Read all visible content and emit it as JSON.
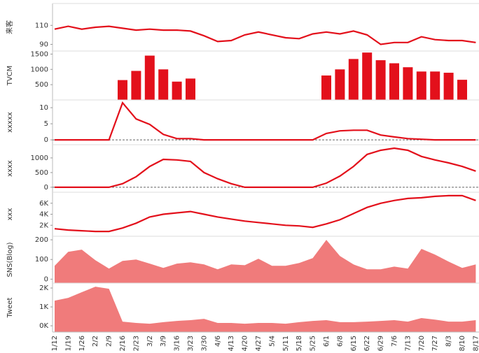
{
  "chart_data": [
    {
      "type": "line",
      "ylabel": "来客",
      "color": "#e3101b",
      "ylim": [
        83,
        133
      ],
      "yticks": [
        90,
        110
      ],
      "values": [
        106,
        109,
        106,
        108,
        109,
        107,
        105,
        106,
        105,
        105,
        104,
        99,
        93,
        94,
        100,
        103,
        100,
        97,
        96,
        101,
        103,
        101,
        104,
        100,
        90,
        92,
        92,
        98,
        95,
        94,
        94,
        92
      ]
    },
    {
      "type": "bar",
      "ylabel": "TVCM",
      "color": "#e3101b",
      "ylim": [
        0,
        1600
      ],
      "yticks": [
        500,
        1000,
        1500
      ],
      "values": [
        null,
        null,
        null,
        null,
        null,
        650,
        950,
        1450,
        1000,
        600,
        700,
        null,
        null,
        null,
        null,
        null,
        null,
        null,
        null,
        null,
        800,
        1000,
        1340,
        1550,
        1300,
        1200,
        1070,
        930,
        930,
        890,
        660,
        null
      ]
    },
    {
      "type": "line",
      "ylabel": "xxxxx",
      "color": "#e3101b",
      "zero_line": true,
      "ylim": [
        -1.5,
        12.4
      ],
      "yticks": [
        0,
        5,
        10
      ],
      "values": [
        0,
        0,
        0,
        0,
        0,
        11.5,
        6.5,
        4.8,
        1.7,
        0.4,
        0.4,
        0,
        0,
        0,
        0,
        0,
        0,
        0,
        0,
        0,
        2,
        2.8,
        3,
        3,
        1.5,
        0.9,
        0.4,
        0.2,
        0,
        0,
        0,
        0
      ]
    },
    {
      "type": "line",
      "ylabel": "xxxx",
      "color": "#e3101b",
      "zero_line": true,
      "ylim": [
        -170,
        1450
      ],
      "yticks": [
        0,
        500,
        1000
      ],
      "values": [
        0,
        0,
        0,
        0,
        0,
        120,
        360,
        710,
        950,
        930,
        880,
        500,
        290,
        120,
        0,
        0,
        0,
        0,
        0,
        0,
        140,
        380,
        710,
        1120,
        1260,
        1330,
        1260,
        1050,
        930,
        830,
        710,
        550
      ]
    },
    {
      "type": "line",
      "ylabel": "xxx",
      "color": "#e3101b",
      "ylim": [
        0,
        8000
      ],
      "yticks": [
        {
          "value": 2000,
          "label": "2K"
        },
        {
          "value": 4000,
          "label": "4K"
        },
        {
          "value": 6000,
          "label": "6K"
        }
      ],
      "values": [
        1375,
        1125,
        1000,
        875,
        875,
        1500,
        2375,
        3500,
        4000,
        4250,
        4500,
        4000,
        3500,
        3125,
        2750,
        2500,
        2250,
        2000,
        1875,
        1625,
        2250,
        3000,
        4125,
        5250,
        6000,
        6500,
        6875,
        7000,
        7250,
        7375,
        7375,
        6500
      ]
    },
    {
      "type": "area",
      "ylabel": "SNS(Blog)",
      "color": "#f07b7b",
      "ylim": [
        -20,
        218
      ],
      "yticks": [
        0,
        100,
        200
      ],
      "values": [
        68,
        139,
        150,
        96,
        54,
        93,
        100,
        79,
        57,
        79,
        86,
        75,
        50,
        75,
        71,
        104,
        68,
        68,
        82,
        107,
        200,
        118,
        75,
        50,
        50,
        64,
        54,
        154,
        125,
        89,
        57,
        75
      ]
    },
    {
      "type": "area",
      "ylabel": "Tweet",
      "color": "#f07b7b",
      "ylim": [
        -330,
        2260
      ],
      "yticks": [
        {
          "value": 0,
          "label": "0K"
        },
        {
          "value": 1000,
          "label": "1K"
        },
        {
          "value": 2000,
          "label": "2K"
        }
      ],
      "values": [
        1330,
        1480,
        1780,
        2070,
        1960,
        220,
        150,
        110,
        190,
        260,
        300,
        370,
        150,
        150,
        110,
        150,
        150,
        110,
        190,
        260,
        300,
        190,
        190,
        220,
        260,
        300,
        220,
        410,
        330,
        220,
        220,
        300
      ],
      "categories": [
        "1/12",
        "1/19",
        "1/26",
        "2/2",
        "2/9",
        "2/16",
        "2/23",
        "3/2",
        "3/9",
        "3/16",
        "3/23",
        "3/30",
        "4/6",
        "4/13",
        "4/20",
        "4/27",
        "5/4",
        "5/11",
        "5/18",
        "5/25",
        "6/1",
        "6/8",
        "6/15",
        "6/22",
        "6/29",
        "7/6",
        "7/13",
        "7/20",
        "7/27",
        "8/3",
        "8/10",
        "8/17"
      ]
    }
  ]
}
